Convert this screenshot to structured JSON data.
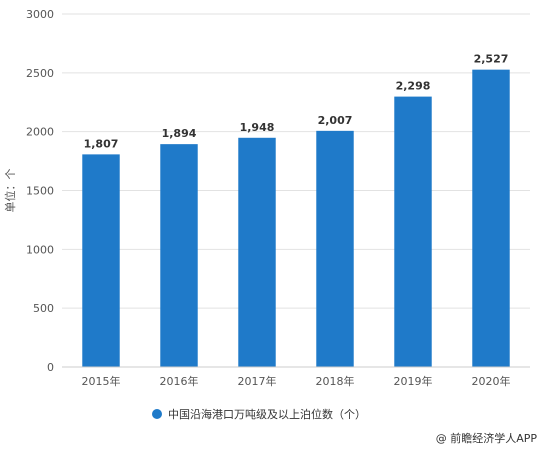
{
  "chart_data": {
    "type": "bar",
    "categories": [
      "2015年",
      "2016年",
      "2017年",
      "2018年",
      "2019年",
      "2020年"
    ],
    "series": [
      {
        "name": "中国沿海港口万吨级及以上泊位数（个）",
        "values": [
          1807,
          1894,
          1948,
          2007,
          2298,
          2527
        ],
        "labels": [
          "1,807",
          "1,894",
          "1,948",
          "2,007",
          "2,298",
          "2,527"
        ],
        "color": "#1f7ac9"
      }
    ],
    "title": "",
    "xlabel": "",
    "ylabel": "单位：个",
    "ylim": [
      0,
      3000
    ],
    "yticks": [
      0,
      500,
      1000,
      1500,
      2000,
      2500,
      3000
    ],
    "grid": true,
    "legend": "bottom-center"
  },
  "credit": "@ 前瞻经济学人APP"
}
